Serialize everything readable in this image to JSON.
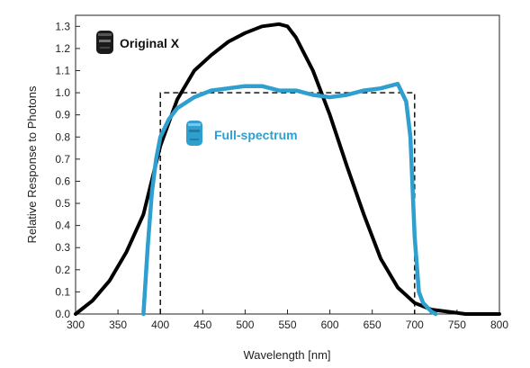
{
  "chart_data": {
    "type": "line",
    "xlabel": "Wavelength [nm]",
    "ylabel": "Relative Response to Photons",
    "xlim": [
      300,
      800
    ],
    "ylim": [
      0,
      1.35
    ],
    "xticks": [
      300,
      350,
      400,
      450,
      500,
      550,
      600,
      650,
      700,
      750,
      800
    ],
    "yticks": [
      "0.0",
      "0.1",
      "0.2",
      "0.3",
      "0.4",
      "0.5",
      "0.6",
      "0.7",
      "0.8",
      "0.9",
      "1.0",
      "1.1",
      "1.2",
      "1.3"
    ],
    "grid": false,
    "legend_placement": "inline-labels",
    "series": [
      {
        "name": "Original X",
        "color": "#000000",
        "icon": "sensor-device-icon-dark",
        "x": [
          300,
          320,
          340,
          360,
          380,
          400,
          420,
          440,
          460,
          480,
          500,
          520,
          540,
          550,
          560,
          580,
          600,
          620,
          640,
          660,
          680,
          700,
          720,
          740,
          760,
          780,
          800
        ],
        "y": [
          0.0,
          0.06,
          0.15,
          0.28,
          0.45,
          0.76,
          0.97,
          1.1,
          1.17,
          1.23,
          1.27,
          1.3,
          1.31,
          1.3,
          1.25,
          1.1,
          0.9,
          0.67,
          0.45,
          0.25,
          0.12,
          0.05,
          0.02,
          0.01,
          0.0,
          0.0,
          0.0
        ]
      },
      {
        "name": "Full-spectrum",
        "color": "#2e9fcf",
        "icon": "sensor-device-icon-blue",
        "x": [
          380,
          385,
          390,
          395,
          400,
          410,
          420,
          440,
          460,
          480,
          500,
          510,
          520,
          540,
          560,
          580,
          600,
          620,
          640,
          660,
          670,
          680,
          690,
          695,
          700,
          705,
          710,
          720,
          725
        ],
        "y": [
          0.0,
          0.3,
          0.55,
          0.7,
          0.8,
          0.88,
          0.93,
          0.98,
          1.01,
          1.02,
          1.03,
          1.03,
          1.03,
          1.01,
          1.01,
          0.99,
          0.98,
          0.99,
          1.01,
          1.02,
          1.03,
          1.04,
          0.96,
          0.8,
          0.35,
          0.1,
          0.05,
          0.01,
          0.0
        ]
      },
      {
        "name": "",
        "color": "#000000",
        "style": "dashed",
        "x": [
          400,
          400,
          700,
          700
        ],
        "y": [
          0.0,
          1.0,
          1.0,
          0.0
        ]
      }
    ]
  }
}
